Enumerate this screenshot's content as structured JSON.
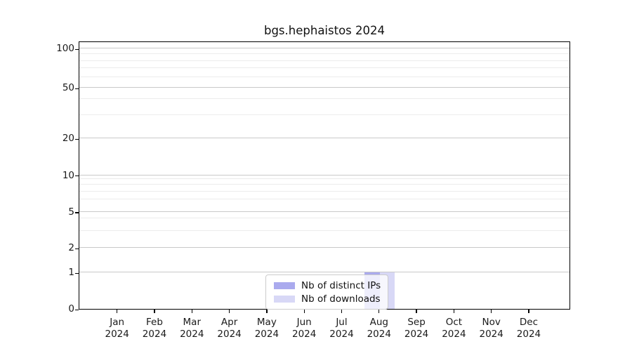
{
  "chart_data": {
    "type": "bar",
    "title": "bgs.hephaistos 2024",
    "categories": [
      "Jan",
      "Feb",
      "Mar",
      "Apr",
      "May",
      "Jun",
      "Jul",
      "Aug",
      "Sep",
      "Oct",
      "Nov",
      "Dec"
    ],
    "category_year": "2024",
    "series": [
      {
        "name": "Nb of distinct IPs",
        "color": "#aaaaee",
        "values": [
          0,
          0,
          0,
          0,
          0,
          0,
          0,
          1,
          0,
          0,
          0,
          0
        ]
      },
      {
        "name": "Nb of downloads",
        "color": "#d8d8f6",
        "values": [
          0,
          0,
          0,
          0,
          0,
          0,
          0,
          1,
          0,
          0,
          0,
          0
        ]
      }
    ],
    "y_axis": {
      "scale": "log1p",
      "major_ticks": [
        0,
        1,
        2,
        5,
        10,
        20,
        50,
        100
      ],
      "minor_gridlines": [
        3,
        4,
        6,
        7,
        8,
        9,
        30,
        40,
        60,
        70,
        80,
        90
      ]
    },
    "grid": "horizontal",
    "legend_position": "bottom-center",
    "colors": {
      "axis": "#000000",
      "major_grid": "#c9c9c9",
      "minor_grid": "#ececec",
      "background": "#ffffff"
    }
  }
}
